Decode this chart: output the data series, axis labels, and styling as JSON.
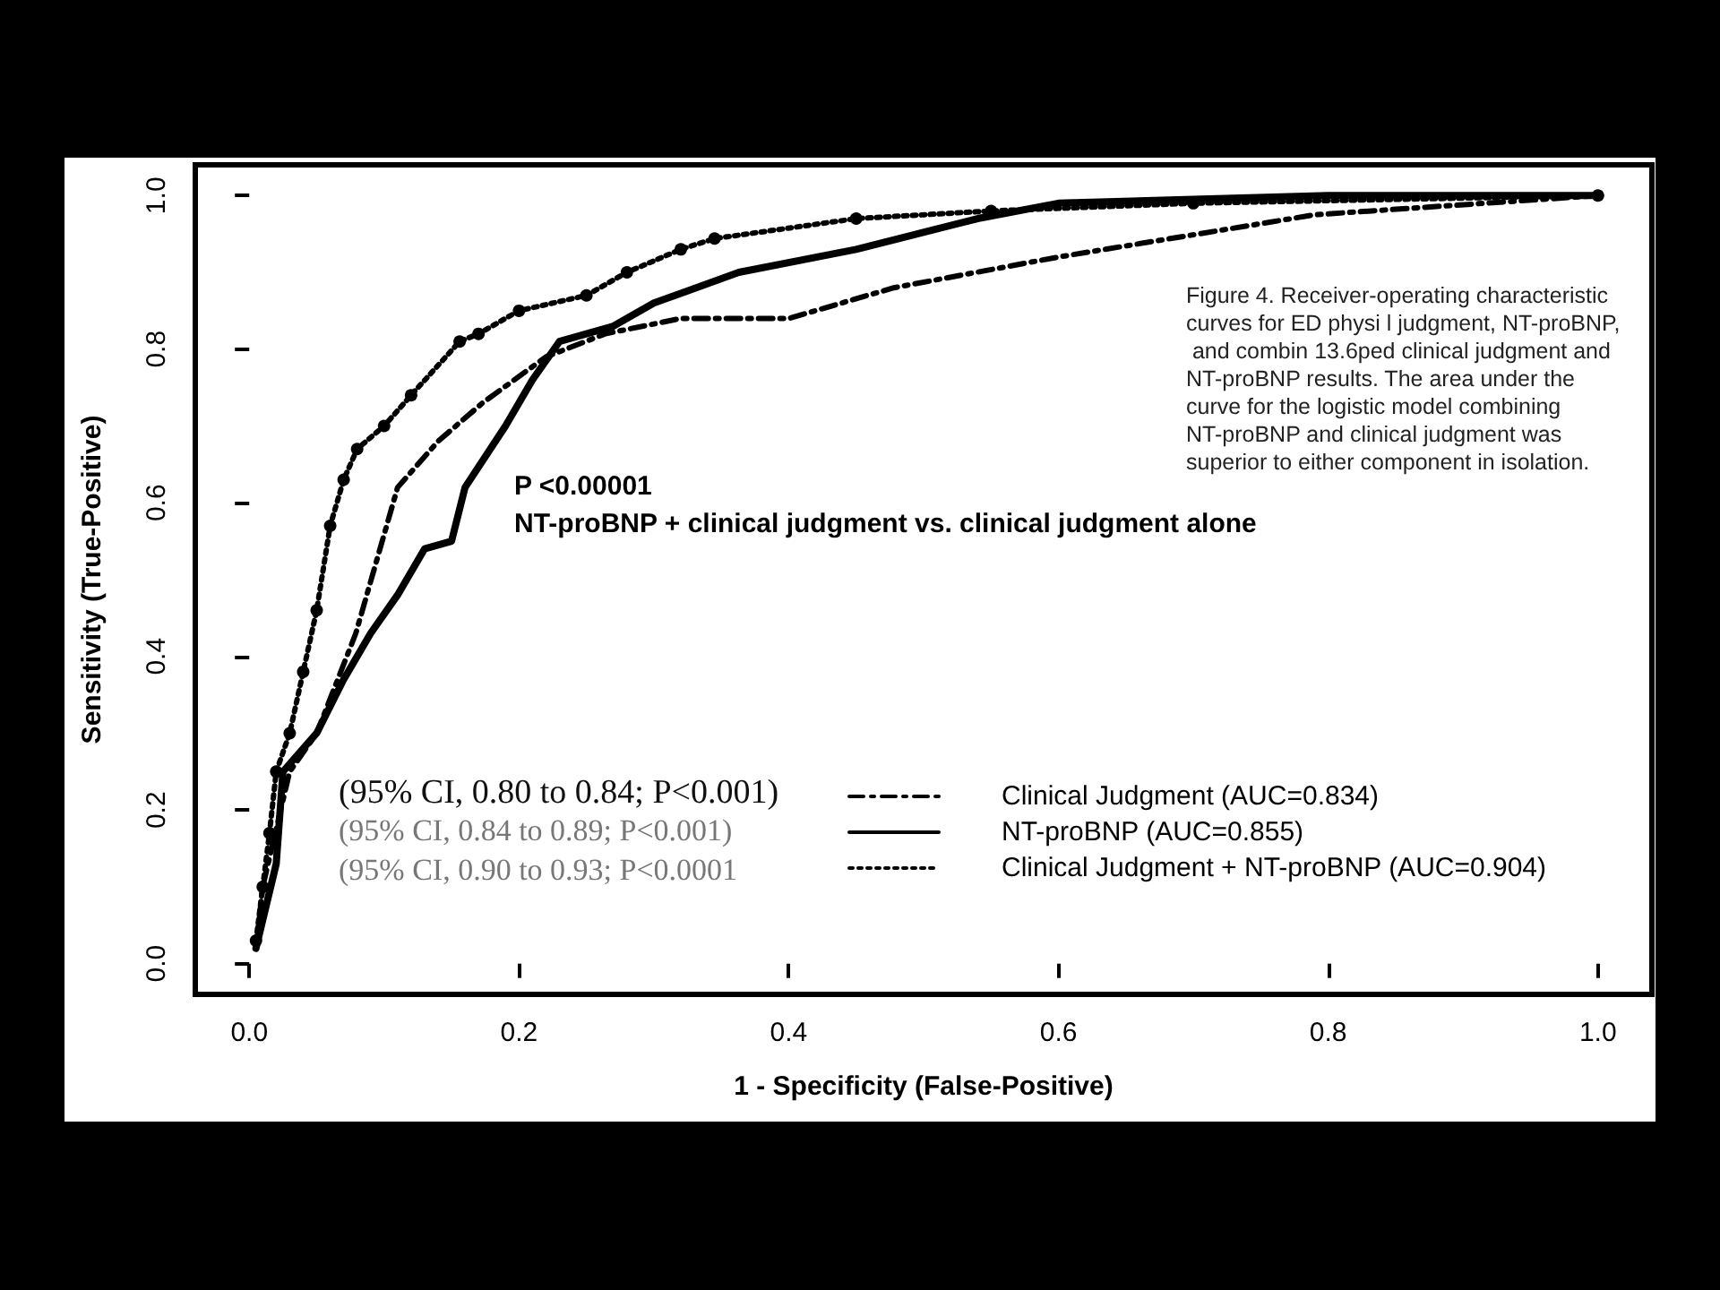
{
  "chart_data": {
    "type": "line",
    "xlabel": "1 - Specificity (False-Positive)",
    "ylabel": "Sensitivity (True-Positive)",
    "xlim": [
      -0.04,
      1.04
    ],
    "ylim": [
      -0.04,
      1.04
    ],
    "xticks": [
      {
        "value": 0,
        "label": "0.0"
      },
      {
        "value": 0.2,
        "label": "0.2"
      },
      {
        "value": 0.4,
        "label": "0.4"
      },
      {
        "value": 0.6,
        "label": "0.6"
      },
      {
        "value": 0.8,
        "label": "0.8"
      },
      {
        "value": 1,
        "label": "1.0"
      }
    ],
    "yticks": [
      {
        "value": 0,
        "label": "0.0"
      },
      {
        "value": 0.2,
        "label": "0.2"
      },
      {
        "value": 0.4,
        "label": "0.4"
      },
      {
        "value": 0.6,
        "label": "0.6"
      },
      {
        "value": 0.8,
        "label": "0.8"
      },
      {
        "value": 1,
        "label": "1.0"
      }
    ],
    "grid": false,
    "legend": "bottom right",
    "series": [
      {
        "name": "Clinical Judgment (AUC=0.834)",
        "color": "#000000",
        "line_style": "dashed",
        "x": [
          0.005,
          0.01,
          0.03,
          0.05,
          0.079,
          0.11,
          0.14,
          0.173,
          0.22,
          0.264,
          0.32,
          0.4,
          0.478,
          0.6,
          0.79,
          1
        ],
        "values": [
          0.02,
          0.1,
          0.25,
          0.3,
          0.43,
          0.62,
          0.68,
          0.73,
          0.79,
          0.82,
          0.84,
          0.84,
          0.88,
          0.92,
          0.975,
          1
        ]
      },
      {
        "name": "NT-proBNP (AUC=0.855)",
        "color": "#000000",
        "line_style": "solid",
        "x": [
          0.005,
          0.02,
          0.025,
          0.05,
          0.07,
          0.09,
          0.11,
          0.13,
          0.15,
          0.16,
          0.19,
          0.21,
          0.23,
          0.27,
          0.3,
          0.363,
          0.45,
          0.54,
          0.6,
          0.8,
          1
        ],
        "values": [
          0.02,
          0.13,
          0.25,
          0.3,
          0.37,
          0.43,
          0.48,
          0.54,
          0.55,
          0.62,
          0.7,
          0.76,
          0.81,
          0.83,
          0.86,
          0.9,
          0.93,
          0.97,
          0.99,
          1,
          1
        ]
      },
      {
        "name": "Clinical Judgment + NT-proBNP (AUC=0.904)",
        "color": "#000000",
        "line_style": "dotted",
        "marker": "circle",
        "x": [
          0.005,
          0.01,
          0.015,
          0.02,
          0.03,
          0.04,
          0.05,
          0.06,
          0.07,
          0.08,
          0.1,
          0.12,
          0.156,
          0.17,
          0.2,
          0.25,
          0.28,
          0.32,
          0.345,
          0.45,
          0.55,
          0.7,
          1
        ],
        "values": [
          0.03,
          0.1,
          0.17,
          0.25,
          0.3,
          0.38,
          0.46,
          0.57,
          0.63,
          0.67,
          0.7,
          0.74,
          0.81,
          0.82,
          0.85,
          0.87,
          0.9,
          0.93,
          0.944,
          0.97,
          0.98,
          0.99,
          1
        ]
      }
    ],
    "annotations": [
      "P <0.00001",
      "NT-proBNP + clinical judgment vs. clinical judgment alone",
      "Figure 4. Receiver-operating characteristic curves for ED physi l judgment, NT-proBNP, and combin 13.6ped clinical judgment and NT-proBNP results. The area under the curve for the logistic model combining NT-proBNP and clinical judgment was superior to either component in isolation.",
      "(95% CI, 0.80 to 0.84; P<0.001)",
      "(95% CI, 0.84 to 0.89; P<0.001)",
      "(95% CI, 0.90 to 0.93; P<0.0001"
    ]
  }
}
